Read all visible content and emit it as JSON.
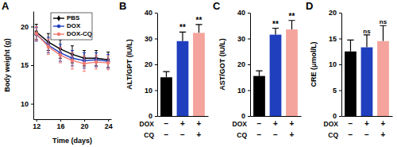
{
  "chart_data": [
    {
      "type": "line",
      "title": "A",
      "xlabel": "Time (days)",
      "ylabel": "Body weight (g)",
      "x": [
        12,
        14,
        16,
        18,
        20,
        22,
        24
      ],
      "xlim": [
        11.5,
        24.5
      ],
      "xticks": [
        12,
        16,
        20,
        24
      ],
      "ylim": [
        8,
        22
      ],
      "yticks": [
        10,
        15,
        20
      ],
      "legend": "top",
      "series": [
        {
          "name": "PBS",
          "color": "#000000",
          "marker": "diamond",
          "values": [
            19.3,
            18.0,
            17.1,
            16.4,
            15.9,
            15.9,
            15.7
          ],
          "errors": [
            1.0,
            1.1,
            1.2,
            1.1,
            1.0,
            1.0,
            1.0
          ]
        },
        {
          "name": "DOX",
          "color": "#1f3fbf",
          "marker": "circle",
          "values": [
            19.0,
            17.6,
            16.6,
            15.9,
            15.6,
            15.7,
            15.5
          ],
          "errors": [
            0.9,
            1.0,
            1.1,
            1.0,
            1.0,
            0.9,
            0.9
          ]
        },
        {
          "name": "DOX-CQ",
          "color": "#f07a72",
          "marker": "circle",
          "values": [
            19.1,
            17.4,
            16.3,
            15.6,
            15.2,
            15.4,
            15.3
          ],
          "errors": [
            0.9,
            1.0,
            1.0,
            1.1,
            1.0,
            0.9,
            0.9
          ]
        }
      ]
    },
    {
      "type": "bar",
      "title": "B",
      "ylabel": "ALT/GPT (IU/L)",
      "categories": [
        null,
        null,
        null
      ],
      "values": [
        15.0,
        29.0,
        32.2
      ],
      "errors": [
        2.2,
        3.5,
        3.2
      ],
      "colors": [
        "#000000",
        "#1f3fbf",
        "#f4a49c"
      ],
      "ylim": [
        0,
        40
      ],
      "yticks": [
        0,
        10,
        20,
        30,
        40
      ],
      "significance": [
        null,
        "**",
        "**"
      ],
      "rows": [
        {
          "label": "DOX",
          "values": [
            "−",
            "+",
            "+"
          ]
        },
        {
          "label": "CQ",
          "values": [
            "−",
            "−",
            "+"
          ]
        }
      ]
    },
    {
      "type": "bar",
      "title": "C",
      "ylabel": "AST/GOT (IU/L)",
      "categories": [
        null,
        null,
        null
      ],
      "values": [
        15.5,
        31.5,
        33.5
      ],
      "errors": [
        2.0,
        2.5,
        3.5
      ],
      "colors": [
        "#000000",
        "#1f3fbf",
        "#f4a49c"
      ],
      "ylim": [
        0,
        40
      ],
      "yticks": [
        0,
        10,
        20,
        30,
        40
      ],
      "significance": [
        null,
        "**",
        "**"
      ],
      "rows": [
        {
          "label": "DOX",
          "values": [
            "−",
            "+",
            "+"
          ]
        },
        {
          "label": "CQ",
          "values": [
            "−",
            "−",
            "+"
          ]
        }
      ]
    },
    {
      "type": "bar",
      "title": "D",
      "ylabel": "CRE (μmol/L)",
      "categories": [
        null,
        null,
        null
      ],
      "values": [
        12.5,
        13.3,
        14.5
      ],
      "errors": [
        2.2,
        2.4,
        3.0
      ],
      "colors": [
        "#000000",
        "#1f3fbf",
        "#f4a49c"
      ],
      "ylim": [
        0,
        20
      ],
      "yticks": [
        0,
        5,
        10,
        15,
        20
      ],
      "significance": [
        null,
        "ns",
        "ns"
      ],
      "rows": [
        {
          "label": "DOX",
          "values": [
            "−",
            "+",
            "+"
          ]
        },
        {
          "label": "CQ",
          "values": [
            "−",
            "−",
            "+"
          ]
        }
      ]
    }
  ]
}
